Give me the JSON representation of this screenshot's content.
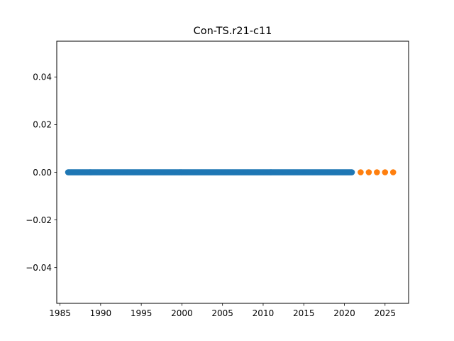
{
  "chart_data": {
    "type": "scatter",
    "title": "Con-TS.r21-c11",
    "xlabel": "",
    "ylabel": "",
    "xlim": [
      1984.6,
      2027.9
    ],
    "ylim": [
      -0.055,
      0.055
    ],
    "x_ticks": [
      1985,
      1990,
      1995,
      2000,
      2005,
      2010,
      2015,
      2020,
      2025
    ],
    "y_ticks": [
      -0.04,
      -0.02,
      0.0,
      0.02,
      0.04
    ],
    "y_tick_labels": [
      "−0.04",
      "−0.02",
      "0.00",
      "0.02",
      "0.04"
    ],
    "grid": false,
    "series": [
      {
        "color": "#1f77b4",
        "x_start": 1986.0,
        "x_end": 2020.917,
        "x_step_months": 1,
        "y_value": 0
      },
      {
        "color": "#ff7f0e",
        "x": [
          2022,
          2023,
          2024,
          2025,
          2026
        ],
        "y": [
          0,
          0,
          0,
          0,
          0
        ]
      }
    ]
  }
}
